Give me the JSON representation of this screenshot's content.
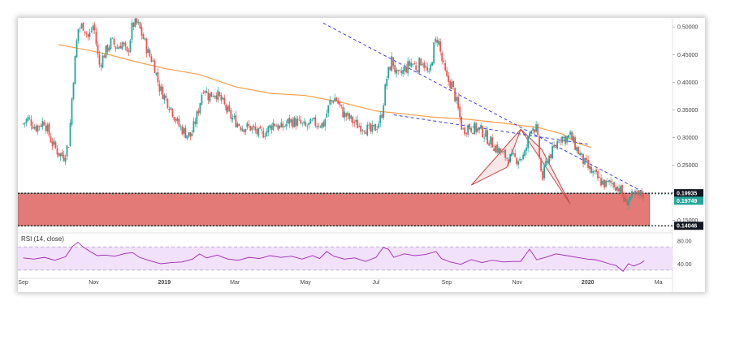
{
  "chart_data": [
    {
      "type": "candlestick",
      "instrument_label": "",
      "price_scale": {
        "ticks": [
          0.5,
          0.45,
          0.4,
          0.35,
          0.3,
          0.25,
          0.2,
          0.15
        ],
        "tick_labels": [
          "0.50000",
          "0.45000",
          "0.40000",
          "0.35000",
          "0.30000",
          "0.25000",
          "0.20000",
          "0.15000"
        ],
        "ylim": [
          0.132,
          0.512
        ]
      },
      "time_axis": {
        "labels": [
          "Sep",
          "Nov",
          "2019",
          "Mar",
          "May",
          "Jul",
          "Sep",
          "Nov",
          "2020",
          "Ma"
        ],
        "positions_months": [
          0,
          2,
          4,
          6,
          8,
          10,
          12,
          14,
          16,
          18
        ],
        "range_months": [
          -0.15,
          18.4
        ],
        "start_month": "2018-09"
      },
      "highlighted_levels": [
        {
          "label": "0.19935",
          "value": 0.19935,
          "style": "dotted-black",
          "badge": "dark"
        },
        {
          "label": "0.19749",
          "value": 0.19749,
          "style": "current-price",
          "badge": "green"
        },
        {
          "label": "0.14046",
          "value": 0.14046,
          "style": "dotted-black",
          "badge": "dark"
        }
      ],
      "support_zone": {
        "top": 0.19935,
        "bottom": 0.14046,
        "x_start": -0.15,
        "x_end": 17.75,
        "color": "#e47a78"
      },
      "moving_average": {
        "color": "#f5a04e",
        "points": [
          [
            1.0,
            0.468
          ],
          [
            1.5,
            0.462
          ],
          [
            2.3,
            0.452
          ],
          [
            3.2,
            0.437
          ],
          [
            4.0,
            0.425
          ],
          [
            5.0,
            0.414
          ],
          [
            6.0,
            0.392
          ],
          [
            7.0,
            0.38
          ],
          [
            8.0,
            0.376
          ],
          [
            9.0,
            0.364
          ],
          [
            10.0,
            0.348
          ],
          [
            10.6,
            0.344
          ],
          [
            11.6,
            0.337
          ],
          [
            12.6,
            0.333
          ],
          [
            13.6,
            0.326
          ],
          [
            14.6,
            0.318
          ],
          [
            15.3,
            0.306
          ],
          [
            15.7,
            0.29
          ],
          [
            16.1,
            0.282
          ]
        ]
      },
      "trendlines": [
        {
          "color": "#3b3fe0",
          "style": "dashed",
          "points": [
            [
              8.5,
              0.507
            ],
            [
              17.5,
              0.204
            ]
          ]
        },
        {
          "color": "#3b3fe0",
          "style": "dashed",
          "points": [
            [
              10.5,
              0.341
            ],
            [
              16.0,
              0.288
            ]
          ]
        }
      ],
      "harmonic_pattern": {
        "color": "#c04848",
        "points": [
          [
            12.7,
            0.214
          ],
          [
            13.7,
            0.246
          ],
          [
            14.1,
            0.315
          ],
          [
            14.7,
            0.278
          ],
          [
            15.5,
            0.18
          ]
        ],
        "fill": "#f2caca"
      },
      "price_path": [
        [
          0.0,
          0.325
        ],
        [
          0.15,
          0.335
        ],
        [
          0.35,
          0.318
        ],
        [
          0.6,
          0.33
        ],
        [
          0.8,
          0.293
        ],
        [
          1.0,
          0.272
        ],
        [
          1.15,
          0.266
        ],
        [
          1.3,
          0.292
        ],
        [
          1.4,
          0.39
        ],
        [
          1.55,
          0.496
        ],
        [
          1.7,
          0.503
        ],
        [
          1.85,
          0.48
        ],
        [
          2.0,
          0.505
        ],
        [
          2.15,
          0.43
        ],
        [
          2.3,
          0.451
        ],
        [
          2.5,
          0.474
        ],
        [
          2.65,
          0.462
        ],
        [
          2.8,
          0.472
        ],
        [
          2.95,
          0.448
        ],
        [
          3.1,
          0.505
        ],
        [
          3.25,
          0.505
        ],
        [
          3.4,
          0.48
        ],
        [
          3.55,
          0.452
        ],
        [
          3.7,
          0.435
        ],
        [
          3.85,
          0.392
        ],
        [
          4.0,
          0.375
        ],
        [
          4.2,
          0.352
        ],
        [
          4.4,
          0.322
        ],
        [
          4.6,
          0.308
        ],
        [
          4.75,
          0.302
        ],
        [
          4.95,
          0.345
        ],
        [
          5.1,
          0.393
        ],
        [
          5.25,
          0.375
        ],
        [
          5.45,
          0.382
        ],
        [
          5.65,
          0.363
        ],
        [
          5.85,
          0.34
        ],
        [
          6.0,
          0.33
        ],
        [
          6.2,
          0.32
        ],
        [
          6.45,
          0.318
        ],
        [
          6.7,
          0.305
        ],
        [
          6.9,
          0.312
        ],
        [
          7.1,
          0.327
        ],
        [
          7.3,
          0.316
        ],
        [
          7.55,
          0.33
        ],
        [
          7.8,
          0.327
        ],
        [
          8.0,
          0.318
        ],
        [
          8.2,
          0.326
        ],
        [
          8.4,
          0.326
        ],
        [
          8.5,
          0.322
        ],
        [
          8.7,
          0.365
        ],
        [
          8.85,
          0.372
        ],
        [
          9.05,
          0.345
        ],
        [
          9.25,
          0.334
        ],
        [
          9.45,
          0.323
        ],
        [
          9.65,
          0.32
        ],
        [
          9.85,
          0.31
        ],
        [
          10.0,
          0.319
        ],
        [
          10.15,
          0.337
        ],
        [
          10.3,
          0.407
        ],
        [
          10.45,
          0.442
        ],
        [
          10.6,
          0.408
        ],
        [
          10.8,
          0.422
        ],
        [
          11.0,
          0.436
        ],
        [
          11.15,
          0.426
        ],
        [
          11.3,
          0.442
        ],
        [
          11.5,
          0.41
        ],
        [
          11.65,
          0.468
        ],
        [
          11.75,
          0.482
        ],
        [
          11.85,
          0.443
        ],
        [
          12.0,
          0.405
        ],
        [
          12.15,
          0.395
        ],
        [
          12.3,
          0.358
        ],
        [
          12.45,
          0.312
        ],
        [
          12.6,
          0.32
        ],
        [
          12.8,
          0.316
        ],
        [
          13.0,
          0.312
        ],
        [
          13.2,
          0.295
        ],
        [
          13.4,
          0.282
        ],
        [
          13.6,
          0.268
        ],
        [
          13.8,
          0.262
        ],
        [
          14.0,
          0.262
        ],
        [
          14.2,
          0.266
        ],
        [
          14.4,
          0.322
        ],
        [
          14.55,
          0.314
        ],
        [
          14.7,
          0.222
        ],
        [
          14.85,
          0.262
        ],
        [
          15.05,
          0.279
        ],
        [
          15.2,
          0.303
        ],
        [
          15.35,
          0.298
        ],
        [
          15.5,
          0.303
        ],
        [
          15.7,
          0.278
        ],
        [
          15.9,
          0.254
        ],
        [
          16.1,
          0.238
        ],
        [
          16.3,
          0.224
        ],
        [
          16.5,
          0.215
        ],
        [
          16.7,
          0.218
        ],
        [
          16.9,
          0.208
        ],
        [
          17.05,
          0.182
        ],
        [
          17.2,
          0.192
        ],
        [
          17.35,
          0.193
        ],
        [
          17.5,
          0.196
        ],
        [
          17.6,
          0.199
        ]
      ],
      "rsi": {
        "label": "RSI (14, close)",
        "color": "#9c27b0",
        "band_fill": "#f1e1fb",
        "levels": [
          70,
          30
        ],
        "tick_labels": [
          "80.00",
          "40.00"
        ],
        "ticks": [
          80,
          40
        ],
        "ylim": [
          20,
          90
        ],
        "path": [
          [
            0.0,
            51
          ],
          [
            0.3,
            49
          ],
          [
            0.6,
            52
          ],
          [
            0.9,
            47
          ],
          [
            1.2,
            53
          ],
          [
            1.4,
            71
          ],
          [
            1.55,
            78
          ],
          [
            1.7,
            70
          ],
          [
            1.9,
            62
          ],
          [
            2.1,
            55
          ],
          [
            2.3,
            56
          ],
          [
            2.6,
            54
          ],
          [
            2.9,
            59
          ],
          [
            3.1,
            60
          ],
          [
            3.3,
            52
          ],
          [
            3.6,
            46
          ],
          [
            3.9,
            41
          ],
          [
            4.2,
            43
          ],
          [
            4.5,
            44
          ],
          [
            4.8,
            49
          ],
          [
            5.0,
            58
          ],
          [
            5.2,
            51
          ],
          [
            5.5,
            56
          ],
          [
            5.8,
            49
          ],
          [
            6.1,
            47
          ],
          [
            6.4,
            52
          ],
          [
            6.7,
            50
          ],
          [
            7.0,
            55
          ],
          [
            7.3,
            52
          ],
          [
            7.6,
            54
          ],
          [
            7.9,
            49
          ],
          [
            8.2,
            55
          ],
          [
            8.4,
            50
          ],
          [
            8.6,
            62
          ],
          [
            8.8,
            54
          ],
          [
            9.1,
            49
          ],
          [
            9.4,
            51
          ],
          [
            9.7,
            45
          ],
          [
            10.0,
            52
          ],
          [
            10.2,
            69
          ],
          [
            10.35,
            66
          ],
          [
            10.5,
            52
          ],
          [
            10.8,
            58
          ],
          [
            11.1,
            55
          ],
          [
            11.4,
            57
          ],
          [
            11.7,
            62
          ],
          [
            11.85,
            50
          ],
          [
            12.1,
            44
          ],
          [
            12.4,
            40
          ],
          [
            12.7,
            48
          ],
          [
            13.0,
            43
          ],
          [
            13.3,
            47
          ],
          [
            13.6,
            44
          ],
          [
            13.9,
            45
          ],
          [
            14.1,
            45
          ],
          [
            14.35,
            66
          ],
          [
            14.55,
            48
          ],
          [
            14.8,
            52
          ],
          [
            15.1,
            58
          ],
          [
            15.4,
            55
          ],
          [
            15.7,
            52
          ],
          [
            16.0,
            49
          ],
          [
            16.2,
            48
          ],
          [
            16.4,
            45
          ],
          [
            16.6,
            41
          ],
          [
            16.8,
            38
          ],
          [
            17.0,
            28
          ],
          [
            17.15,
            41
          ],
          [
            17.3,
            37
          ],
          [
            17.5,
            42
          ],
          [
            17.6,
            46
          ]
        ]
      }
    }
  ]
}
